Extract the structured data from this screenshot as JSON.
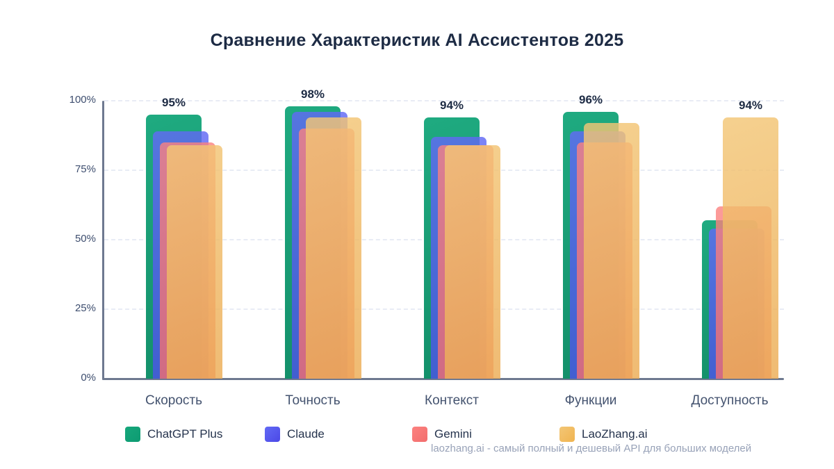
{
  "title": "Сравнение Характеристик AI Ассистентов 2025",
  "watermark": "laozhang.ai - самый полный и дешевый API для больших моделей",
  "colors": {
    "title_text": "#1d2b44",
    "axis": "#6e7990",
    "gridline": "#e8ecf5",
    "tick_text": "#3d4d6e",
    "category_text": "#44536f",
    "value_label_text": "#1d2b44",
    "watermark_text": "#98a2b8"
  },
  "chart_data": {
    "type": "bar",
    "style": "overlapping translucent bars, one offset stack per category",
    "title": "Сравнение Характеристик AI Ассистентов 2025",
    "categories": [
      "Скорость",
      "Точность",
      "Контекст",
      "Функции",
      "Доступность"
    ],
    "series": [
      {
        "name": "ChatGPT Plus",
        "legend_color": "#0d9b72",
        "bar_color_top": "rgba(22,167,123,0.96)",
        "bar_color_bottom": "rgba(9,138,99,0.96)",
        "values": [
          95,
          98,
          94,
          96,
          57
        ]
      },
      {
        "name": "Claude",
        "legend_color": "#4b48e6",
        "bar_color_top": "rgba(98,106,245,0.82)",
        "bar_color_bottom": "rgba(74,82,230,0.82)",
        "values": [
          89,
          96,
          87,
          89,
          54
        ]
      },
      {
        "name": "Gemini",
        "legend_color": "#f26d6d",
        "bar_color_top": "rgba(252,130,128,0.8)",
        "bar_color_bottom": "rgba(244,108,110,0.8)",
        "values": [
          85,
          90,
          84,
          85,
          62
        ]
      },
      {
        "name": "LaoZhang.ai",
        "legend_color": "#f0b450",
        "bar_color_top": "rgba(243,198,118,0.82)",
        "bar_color_bottom": "rgba(236,172,84,0.82)",
        "values": [
          84,
          94,
          84,
          92,
          94
        ]
      }
    ],
    "group_value_labels": [
      "95%",
      "98%",
      "94%",
      "96%",
      "94%"
    ],
    "y_ticks": [
      0,
      25,
      50,
      75,
      100
    ],
    "y_tick_labels": [
      "0%",
      "25%",
      "50%",
      "75%",
      "100%"
    ],
    "ylim": [
      0,
      100
    ],
    "xlabel": "",
    "ylabel": "",
    "grid": "dashed horizontal gridlines at 25/50/75/100",
    "legend_position": "bottom"
  }
}
